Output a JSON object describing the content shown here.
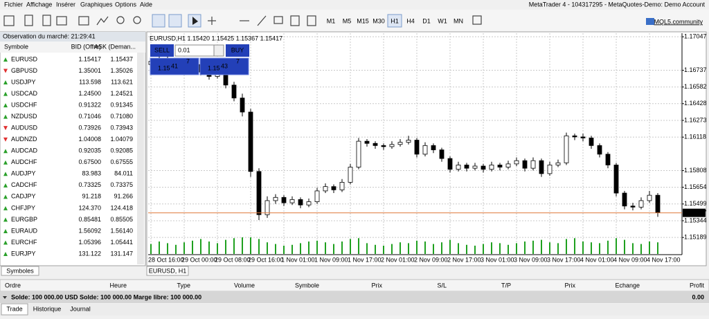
{
  "menu": [
    "Fichier",
    "Affichage",
    "Insérer",
    "Graphiques",
    "Options",
    "Aide"
  ],
  "window_title": "MetaTrader 4 - 104317295 - MetaQuotes-Demo: Demo Account",
  "toolbar": {
    "timeframes": [
      "M1",
      "M5",
      "M15",
      "M30",
      "H1",
      "H4",
      "D1",
      "W1",
      "MN"
    ],
    "active_timeframe": "H1",
    "community": "MQL5.community"
  },
  "market_watch": {
    "title": "Observation du marché: 21:29:41",
    "columns": [
      "Symbole",
      "BID (Offre)",
      "ASK (Deman..."
    ],
    "rows": [
      {
        "symbol": "EURUSD",
        "bid": "1.15417",
        "ask": "1.15437",
        "direction": "up"
      },
      {
        "symbol": "GBPUSD",
        "bid": "1.35001",
        "ask": "1.35026",
        "direction": "down"
      },
      {
        "symbol": "USDJPY",
        "bid": "113.598",
        "ask": "113.621",
        "direction": "up"
      },
      {
        "symbol": "USDCAD",
        "bid": "1.24500",
        "ask": "1.24521",
        "direction": "up"
      },
      {
        "symbol": "USDCHF",
        "bid": "0.91322",
        "ask": "0.91345",
        "direction": "up"
      },
      {
        "symbol": "NZDUSD",
        "bid": "0.71046",
        "ask": "0.71080",
        "direction": "up"
      },
      {
        "symbol": "AUDUSD",
        "bid": "0.73926",
        "ask": "0.73943",
        "direction": "down"
      },
      {
        "symbol": "AUDNZD",
        "bid": "1.04008",
        "ask": "1.04079",
        "direction": "down"
      },
      {
        "symbol": "AUDCAD",
        "bid": "0.92035",
        "ask": "0.92085",
        "direction": "up"
      },
      {
        "symbol": "AUDCHF",
        "bid": "0.67500",
        "ask": "0.67555",
        "direction": "up"
      },
      {
        "symbol": "AUDJPY",
        "bid": "83.983",
        "ask": "84.011",
        "direction": "up"
      },
      {
        "symbol": "CADCHF",
        "bid": "0.73325",
        "ask": "0.73375",
        "direction": "up"
      },
      {
        "symbol": "CADJPY",
        "bid": "91.218",
        "ask": "91.266",
        "direction": "up"
      },
      {
        "symbol": "CHFJPY",
        "bid": "124.370",
        "ask": "124.418",
        "direction": "up"
      },
      {
        "symbol": "EURGBP",
        "bid": "0.85481",
        "ask": "0.85505",
        "direction": "up"
      },
      {
        "symbol": "EURAUD",
        "bid": "1.56092",
        "ask": "1.56140",
        "direction": "up"
      },
      {
        "symbol": "EURCHF",
        "bid": "1.05396",
        "ask": "1.05441",
        "direction": "up"
      },
      {
        "symbol": "EURJPY",
        "bid": "131.122",
        "ask": "131.147",
        "direction": "up"
      }
    ],
    "tab": "Symboles"
  },
  "chart": {
    "header": "EURUSD,H1  1.15420 1.15425 1.15367 1.15417",
    "tab": "EURUSD, H1",
    "trade_panel": {
      "sell": "SELL",
      "buy": "BUY",
      "lots": "0.01",
      "sell_big": "1.15",
      "sell_digits": "41",
      "sell_pip": "7",
      "buy_big": "1.15",
      "buy_digits": "43",
      "buy_pip": "7"
    },
    "ylim": [
      1.1503,
      1.1708
    ],
    "grid": true,
    "price_ticks": [
      1.17047,
      1.16737,
      1.16582,
      1.16428,
      1.16273,
      1.16118,
      1.15808,
      1.15654,
      1.15499,
      1.15344,
      1.15189
    ],
    "current_price": 1.15417,
    "bid_line_color": "#e07a3c",
    "volume_color": "#1fa01f",
    "time_labels": [
      "28 Oct 16:00",
      "29 Oct 00:00",
      "29 Oct 08:00",
      "29 Oct 16:00",
      "1 Nov 01:00",
      "1 Nov 09:00",
      "1 Nov 17:00",
      "2 Nov 01:00",
      "2 Nov 09:00",
      "2 Nov 17:00",
      "3 Nov 01:00",
      "3 Nov 09:00",
      "3 Nov 17:00",
      "4 Nov 01:00",
      "4 Nov 09:00",
      "4 Nov 17:00"
    ],
    "candles": [
      [
        1.1679,
        1.1685,
        1.1676,
        1.1682
      ],
      [
        1.1682,
        1.1688,
        1.168,
        1.1685
      ],
      [
        1.1685,
        1.1688,
        1.1675,
        1.1678
      ],
      [
        1.1678,
        1.1683,
        1.1676,
        1.168
      ],
      [
        1.168,
        1.1682,
        1.1673,
        1.1676
      ],
      [
        1.1676,
        1.1681,
        1.1674,
        1.1679
      ],
      [
        1.1679,
        1.1681,
        1.1669,
        1.1672
      ],
      [
        1.1672,
        1.1675,
        1.1665,
        1.1668
      ],
      [
        1.1668,
        1.1676,
        1.1666,
        1.1673
      ],
      [
        1.1673,
        1.1675,
        1.1657,
        1.166
      ],
      [
        1.166,
        1.1663,
        1.1645,
        1.1648
      ],
      [
        1.1648,
        1.1652,
        1.1631,
        1.1635
      ],
      [
        1.1635,
        1.1638,
        1.1575,
        1.158
      ],
      [
        1.158,
        1.1583,
        1.1535,
        1.154
      ],
      [
        1.154,
        1.1557,
        1.1537,
        1.1553
      ],
      [
        1.1553,
        1.1559,
        1.155,
        1.1556
      ],
      [
        1.1556,
        1.1558,
        1.1548,
        1.1551
      ],
      [
        1.1551,
        1.1557,
        1.1549,
        1.1554
      ],
      [
        1.1554,
        1.1556,
        1.1546,
        1.1549
      ],
      [
        1.1549,
        1.1555,
        1.1547,
        1.1552
      ],
      [
        1.1552,
        1.1565,
        1.155,
        1.1562
      ],
      [
        1.1562,
        1.1569,
        1.156,
        1.1566
      ],
      [
        1.1566,
        1.1568,
        1.156,
        1.1563
      ],
      [
        1.1563,
        1.1573,
        1.1561,
        1.157
      ],
      [
        1.157,
        1.1587,
        1.1568,
        1.1584
      ],
      [
        1.1584,
        1.1611,
        1.1582,
        1.1608
      ],
      [
        1.1608,
        1.161,
        1.1603,
        1.1606
      ],
      [
        1.1606,
        1.1608,
        1.1601,
        1.1604
      ],
      [
        1.1604,
        1.1606,
        1.16,
        1.1603
      ],
      [
        1.1603,
        1.1608,
        1.1601,
        1.1605
      ],
      [
        1.1605,
        1.161,
        1.1603,
        1.1607
      ],
      [
        1.1607,
        1.1613,
        1.1605,
        1.1609
      ],
      [
        1.1609,
        1.1611,
        1.1593,
        1.1596
      ],
      [
        1.1596,
        1.1607,
        1.1594,
        1.1604
      ],
      [
        1.1604,
        1.1606,
        1.1597,
        1.16
      ],
      [
        1.16,
        1.1602,
        1.1589,
        1.1592
      ],
      [
        1.1592,
        1.1594,
        1.1579,
        1.1582
      ],
      [
        1.1582,
        1.1589,
        1.158,
        1.1586
      ],
      [
        1.1586,
        1.1588,
        1.158,
        1.1583
      ],
      [
        1.1583,
        1.1588,
        1.1581,
        1.1585
      ],
      [
        1.1585,
        1.1587,
        1.1579,
        1.1582
      ],
      [
        1.1582,
        1.1589,
        1.158,
        1.1586
      ],
      [
        1.1586,
        1.1588,
        1.1581,
        1.1584
      ],
      [
        1.1584,
        1.159,
        1.1582,
        1.1587
      ],
      [
        1.1587,
        1.1593,
        1.1585,
        1.159
      ],
      [
        1.159,
        1.1592,
        1.158,
        1.1583
      ],
      [
        1.1583,
        1.1593,
        1.1581,
        1.159
      ],
      [
        1.159,
        1.1592,
        1.1575,
        1.1578
      ],
      [
        1.1578,
        1.1589,
        1.1576,
        1.1586
      ],
      [
        1.1586,
        1.1591,
        1.1584,
        1.1588
      ],
      [
        1.1588,
        1.1616,
        1.1586,
        1.1613
      ],
      [
        1.1613,
        1.1615,
        1.1609,
        1.1612
      ],
      [
        1.1612,
        1.1615,
        1.1608,
        1.1611
      ],
      [
        1.1611,
        1.1613,
        1.1601,
        1.1604
      ],
      [
        1.1604,
        1.1606,
        1.1593,
        1.1596
      ],
      [
        1.1596,
        1.1598,
        1.1583,
        1.1586
      ],
      [
        1.1586,
        1.1588,
        1.1557,
        1.156
      ],
      [
        1.156,
        1.1562,
        1.1545,
        1.1548
      ],
      [
        1.1548,
        1.1551,
        1.1544,
        1.1547
      ],
      [
        1.1547,
        1.1556,
        1.1545,
        1.1553
      ],
      [
        1.1553,
        1.1562,
        1.1551,
        1.1558
      ],
      [
        1.1558,
        1.156,
        1.1538,
        1.1542
      ]
    ],
    "volumes": [
      1200,
      1500,
      1300,
      1100,
      1400,
      1600,
      1800,
      1500,
      1300,
      1700,
      1900,
      2000,
      2000,
      1800,
      1400,
      1200,
      1000,
      1100,
      1300,
      1500,
      1600,
      1400,
      1200,
      1500,
      1800,
      1900,
      1300,
      1100,
      1000,
      1200,
      1400,
      1300,
      1600,
      1500,
      1200,
      1400,
      1700,
      1300,
      1100,
      1000,
      1200,
      1400,
      1300,
      1100,
      1300,
      1500,
      1600,
      1700,
      1400,
      1300,
      1800,
      1900,
      1500,
      1400,
      1300,
      1600,
      1900,
      1700,
      1300,
      1200,
      1500,
      1400
    ]
  },
  "terminal": {
    "columns": [
      "Ordre",
      "Heure",
      "Type",
      "Volume",
      "Symbole",
      "Prix",
      "S/L",
      "T/P",
      "Prix",
      "Echange",
      "Profit"
    ],
    "balance": "Solde: 100 000.00 USD  Solde: 100 000.00  Marge libre: 100 000.00",
    "profit": "0.00",
    "tabs": [
      "Trade",
      "Historique",
      "Journal"
    ]
  }
}
